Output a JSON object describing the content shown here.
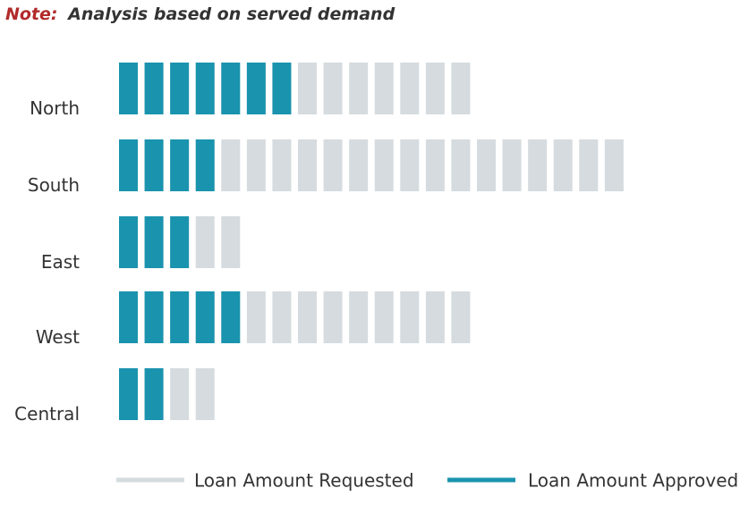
{
  "chart_data": {
    "type": "pictograph",
    "note_label": "Note:",
    "note_text": "Analysis based on served demand",
    "categories": [
      "North",
      "South",
      "East",
      "West",
      "Central"
    ],
    "series": [
      {
        "name": "Loan Amount Requested",
        "color": "#d5dbde",
        "values": [
          14,
          20,
          5,
          14,
          4
        ]
      },
      {
        "name": "Loan Amount Approved",
        "color": "#1a93ae",
        "values": [
          7,
          4,
          3,
          5,
          2
        ]
      }
    ]
  }
}
